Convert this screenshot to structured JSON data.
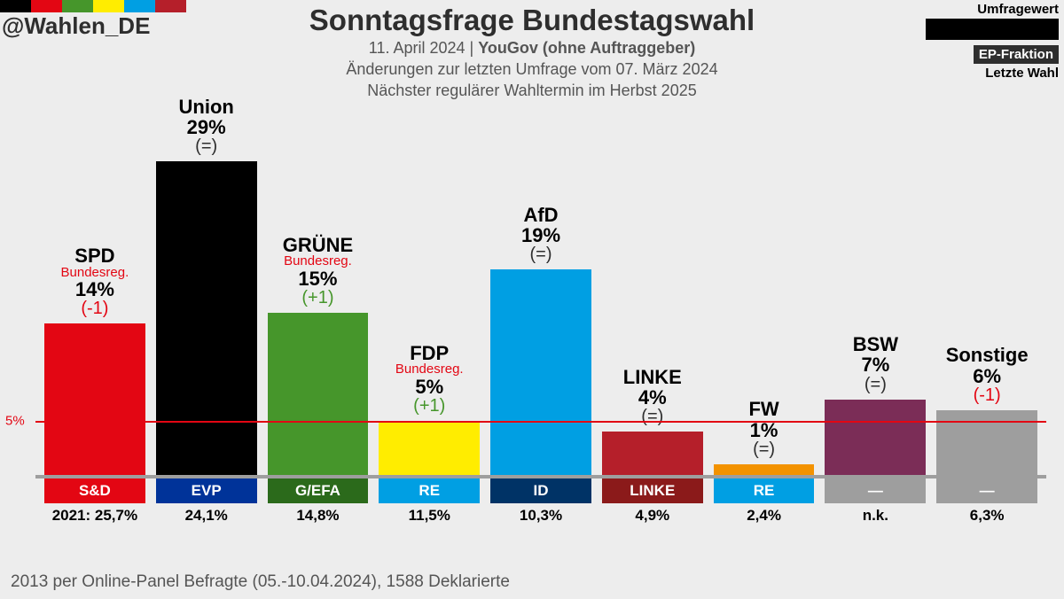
{
  "handle": "@Wahlen_DE",
  "stripe_colors": [
    "#000000",
    "#e30613",
    "#46962b",
    "#ffed00",
    "#009fe3",
    "#b51f2a"
  ],
  "title": "Sonntagsfrage Bundestagswahl",
  "subtitle_date": "11. April 2024",
  "subtitle_institute": "YouGov (ohne Auftraggeber)",
  "subtitle_change": "Änderungen zur letzten Umfrage vom 07. März 2024",
  "subtitle_next": "Nächster regulärer Wahltermin im Herbst 2025",
  "legend": {
    "umfragewert": "Umfragewert",
    "ep": "EP-Fraktion",
    "letzte": "Letzte Wahl"
  },
  "chart": {
    "max_value": 30,
    "threshold_value": 5,
    "threshold_label": "5%",
    "threshold_color": "#e30613",
    "baseline_color": "#9e9e9e",
    "year_prefix": "2021:",
    "parties": [
      {
        "name": "SPD",
        "gov": "Bundesreg.",
        "pct": "14%",
        "value": 14,
        "delta": "(-1)",
        "delta_color": "#e30613",
        "bar_color": "#e30613",
        "ep_label": "S&D",
        "ep_color": "#e30613",
        "last": "25,7%"
      },
      {
        "name": "Union",
        "gov": "",
        "pct": "29%",
        "value": 29,
        "delta": "(=)",
        "delta_color": "#2e2e2e",
        "bar_color": "#000000",
        "ep_label": "EVP",
        "ep_color": "#003399",
        "last": "24,1%"
      },
      {
        "name": "GRÜNE",
        "gov": "Bundesreg.",
        "pct": "15%",
        "value": 15,
        "delta": "(+1)",
        "delta_color": "#46962b",
        "bar_color": "#46962b",
        "ep_label": "G/EFA",
        "ep_color": "#2b6a1b",
        "last": "14,8%"
      },
      {
        "name": "FDP",
        "gov": "Bundesreg.",
        "pct": "5%",
        "value": 5,
        "delta": "(+1)",
        "delta_color": "#46962b",
        "bar_color": "#ffed00",
        "ep_label": "RE",
        "ep_color": "#009fe3",
        "last": "11,5%"
      },
      {
        "name": "AfD",
        "gov": "",
        "pct": "19%",
        "value": 19,
        "delta": "(=)",
        "delta_color": "#2e2e2e",
        "bar_color": "#009fe3",
        "ep_label": "ID",
        "ep_color": "#003366",
        "last": "10,3%"
      },
      {
        "name": "LINKE",
        "gov": "",
        "pct": "4%",
        "value": 4,
        "delta": "(=)",
        "delta_color": "#2e2e2e",
        "bar_color": "#b51f2a",
        "ep_label": "LINKE",
        "ep_color": "#8b1a1a",
        "last": "4,9%"
      },
      {
        "name": "FW",
        "gov": "",
        "pct": "1%",
        "value": 1,
        "delta": "(=)",
        "delta_color": "#2e2e2e",
        "bar_color": "#f39200",
        "ep_label": "RE",
        "ep_color": "#009fe3",
        "last": "2,4%"
      },
      {
        "name": "BSW",
        "gov": "",
        "pct": "7%",
        "value": 7,
        "delta": "(=)",
        "delta_color": "#2e2e2e",
        "bar_color": "#7b2d57",
        "ep_label": "—",
        "ep_color": "#9e9e9e",
        "last": "n.k."
      },
      {
        "name": "Sonstige",
        "gov": "",
        "pct": "6%",
        "value": 6,
        "delta": "(-1)",
        "delta_color": "#e30613",
        "bar_color": "#9e9e9e",
        "ep_label": "—",
        "ep_color": "#9e9e9e",
        "last": "6,3%"
      }
    ]
  },
  "footer": "2013 per Online-Panel Befragte (05.-10.04.2024), 1588 Deklarierte"
}
